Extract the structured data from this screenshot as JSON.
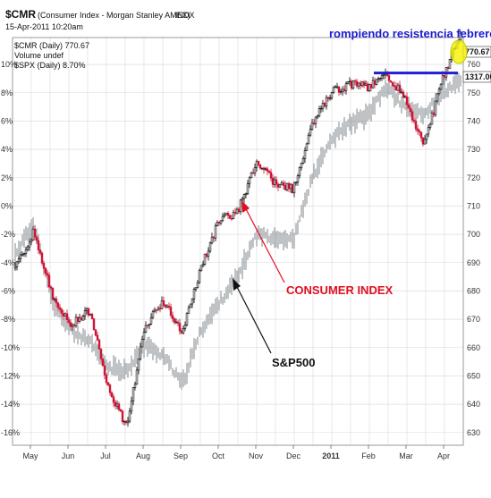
{
  "header": {
    "title_symbol": "$CMR",
    "title_desc": "(Consumer Index - Morgan Stanley AMEX)",
    "title_code": "INDX",
    "date": "15-Apr-2011 10:20am"
  },
  "legend": {
    "cmr": "$CMR (Daily) 770.67",
    "volume": "Volume undef",
    "spx": "$SPX (Daily) 8.70%"
  },
  "price_tags": {
    "primary": "770.67",
    "secondary": "1317.00"
  },
  "annotations": {
    "consumer": "CONSUMER INDEX",
    "sp500": "S&P500",
    "resistance": "rompiendo resistencia febrero"
  },
  "colors": {
    "up": "#000000",
    "down": "#cc1133",
    "spx": "#8c9296",
    "resistance": "#1f1fcc",
    "highlight": "#f2f200",
    "grid": "#d8d8d8"
  },
  "chart_data": {
    "type": "line",
    "x": [
      "2010-04-19",
      "2010-05-03",
      "2010-05-17",
      "2010-06-01",
      "2010-06-15",
      "2010-07-01",
      "2010-07-15",
      "2010-08-02",
      "2010-08-16",
      "2010-09-01",
      "2010-09-15",
      "2010-10-01",
      "2010-10-15",
      "2010-11-01",
      "2010-11-15",
      "2010-12-01",
      "2010-12-15",
      "2011-01-03",
      "2011-01-18",
      "2011-02-01",
      "2011-02-15",
      "2011-03-01",
      "2011-03-16",
      "2011-04-01",
      "2011-04-15"
    ],
    "series": [
      {
        "name": "$CMR (Daily) 770.67",
        "values": [
          688,
          701,
          678,
          668,
          673,
          646,
          632,
          668,
          676,
          665,
          688,
          705,
          708,
          726,
          718,
          716,
          739,
          750,
          753,
          752,
          757,
          748,
          731,
          754,
          770.67
        ]
      },
      {
        "name": "$SPX (Daily) 8.70%",
        "values": [
          693,
          704,
          676,
          666,
          662,
          653,
          652,
          661,
          657,
          647,
          666,
          676,
          685,
          700,
          699,
          698,
          720,
          733,
          739,
          742,
          752,
          745,
          742,
          750,
          754
        ]
      }
    ],
    "y_right_ticks": [
      630,
      640,
      650,
      660,
      670,
      680,
      690,
      700,
      710,
      720,
      730,
      740,
      750,
      760
    ],
    "y_right_lim": [
      625.5,
      769.5
    ],
    "y_left_ticks": [
      "-16%",
      "-14%",
      "-12%",
      "-10%",
      "-8%",
      "-6%",
      "-4%",
      "-2%",
      "0%",
      "2%",
      "4%",
      "6%",
      "8%",
      "10%"
    ],
    "x_labels": [
      "May",
      "Jun",
      "Jul",
      "Aug",
      "Sep",
      "Oct",
      "Nov",
      "Dec",
      "2011",
      "Feb",
      "Mar",
      "Apr"
    ],
    "resistance_level": 757,
    "grid": true
  }
}
